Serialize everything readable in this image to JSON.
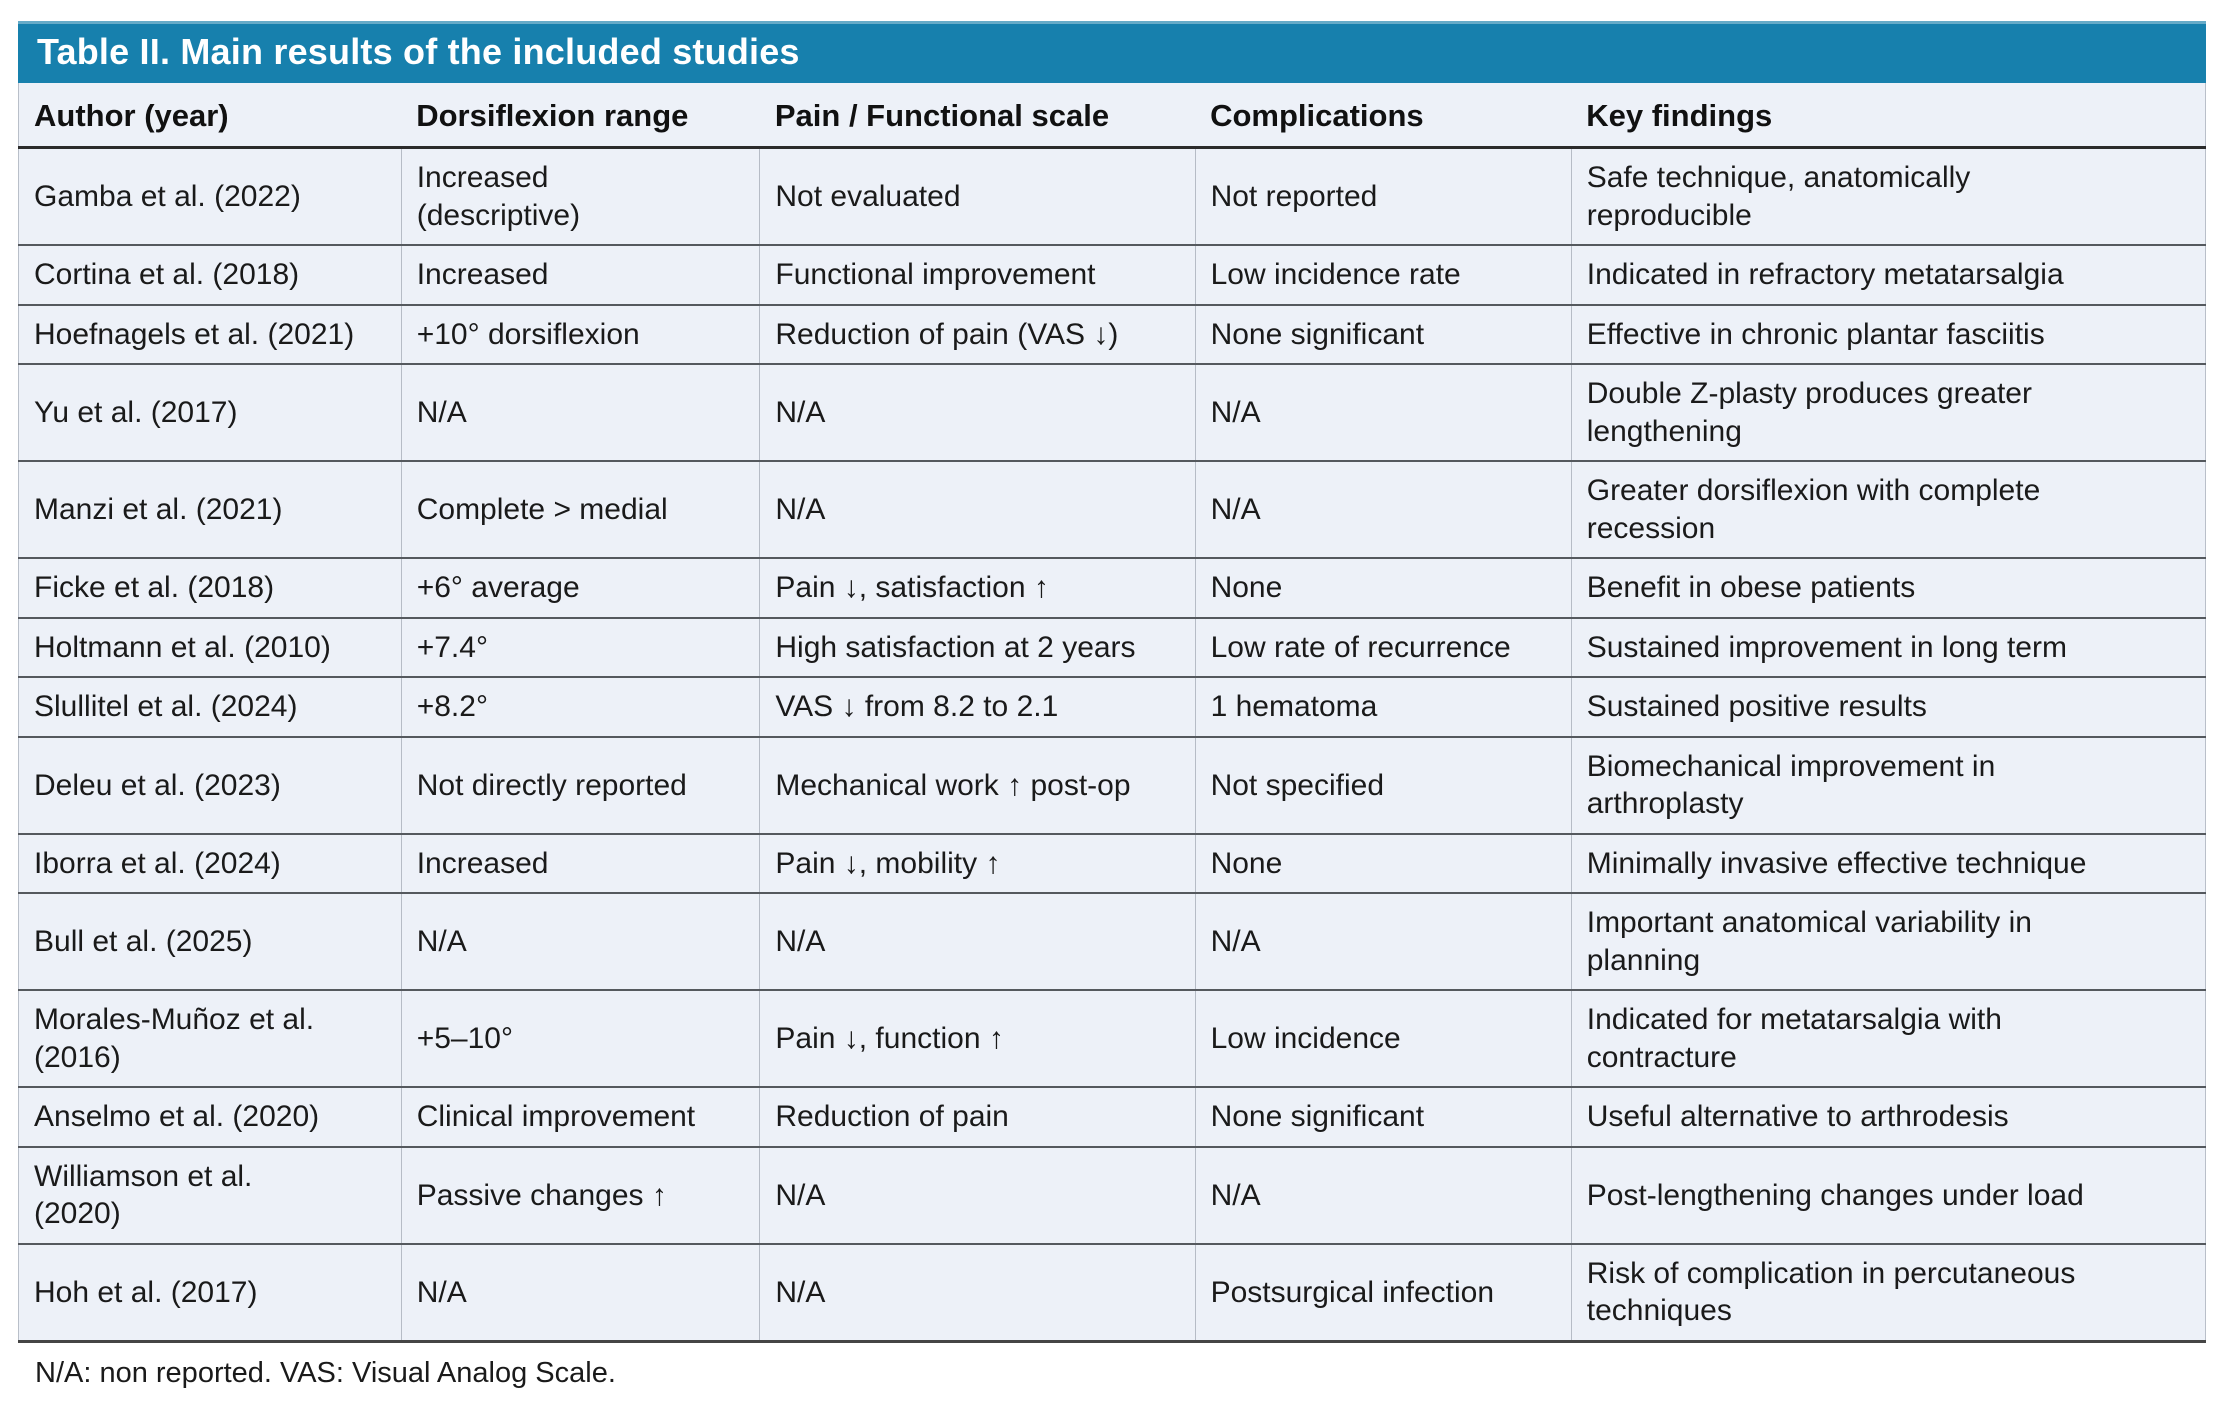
{
  "table": {
    "title": "Table II. Main results of the included studies",
    "columns": [
      "Author (year)",
      "Dorsiflexion range",
      "Pain / Functional scale",
      "Complications",
      "Key findings"
    ],
    "rows": [
      [
        "Gamba et al. (2022)",
        "Increased\n(descriptive)",
        "Not evaluated",
        "Not reported",
        "Safe technique, anatomically\nreproducible"
      ],
      [
        "Cortina et al. (2018)",
        "Increased",
        "Functional improvement",
        "Low incidence rate",
        "Indicated in refractory metatarsalgia"
      ],
      [
        "Hoefnagels et al. (2021)",
        "+10° dorsiflexion",
        "Reduction of pain (VAS ↓)",
        "None significant",
        "Effective in chronic plantar fasciitis"
      ],
      [
        "Yu et al. (2017)",
        "N/A",
        "N/A",
        "N/A",
        "Double Z-plasty produces greater\nlengthening"
      ],
      [
        "Manzi et al. (2021)",
        "Complete > medial",
        "N/A",
        "N/A",
        "Greater dorsiflexion with complete\nrecession"
      ],
      [
        "Ficke et al. (2018)",
        "+6° average",
        "Pain ↓, satisfaction ↑",
        "None",
        "Benefit in obese patients"
      ],
      [
        "Holtmann et al. (2010)",
        "+7.4°",
        "High satisfaction at 2 years",
        "Low rate of recurrence",
        "Sustained improvement in long term"
      ],
      [
        "Slullitel et al. (2024)",
        "+8.2°",
        "VAS ↓ from 8.2 to 2.1",
        "1 hematoma",
        "Sustained positive results"
      ],
      [
        "Deleu et al. (2023)",
        "Not directly reported",
        "Mechanical work ↑ post-op",
        "Not specified",
        "Biomechanical improvement in\narthroplasty"
      ],
      [
        "Iborra et al. (2024)",
        "Increased",
        "Pain ↓, mobility ↑",
        "None",
        "Minimally invasive effective technique"
      ],
      [
        "Bull et al. (2025)",
        "N/A",
        "N/A",
        "N/A",
        "Important anatomical variability in\nplanning"
      ],
      [
        "Morales-Muñoz et al.\n(2016)",
        "+5–10°",
        "Pain ↓, function ↑",
        "Low incidence",
        "Indicated for metatarsalgia with\ncontracture"
      ],
      [
        "Anselmo et al. (2020)",
        "Clinical improvement",
        "Reduction of pain",
        "None significant",
        "Useful alternative to arthrodesis"
      ],
      [
        "Williamson et al.\n(2020)",
        "Passive changes ↑",
        "N/A",
        "N/A",
        "Post-lengthening changes under load"
      ],
      [
        "Hoh et al. (2017)",
        "N/A",
        "N/A",
        "Postsurgical infection",
        "Risk of complication in percutaneous\ntechniques"
      ]
    ],
    "footnote": "N/A: non reported. VAS: Visual Analog Scale.",
    "colors": {
      "title_bar_bg": "#1780ad",
      "title_bar_top_edge": "#66abc8",
      "title_text": "#ffffff",
      "row_bg": "#edf1f8",
      "row_separator": "#55595e",
      "header_underline": "#2b2b2b",
      "column_hairline": "#b6bcc6",
      "body_text": "#1a1a1a"
    }
  }
}
